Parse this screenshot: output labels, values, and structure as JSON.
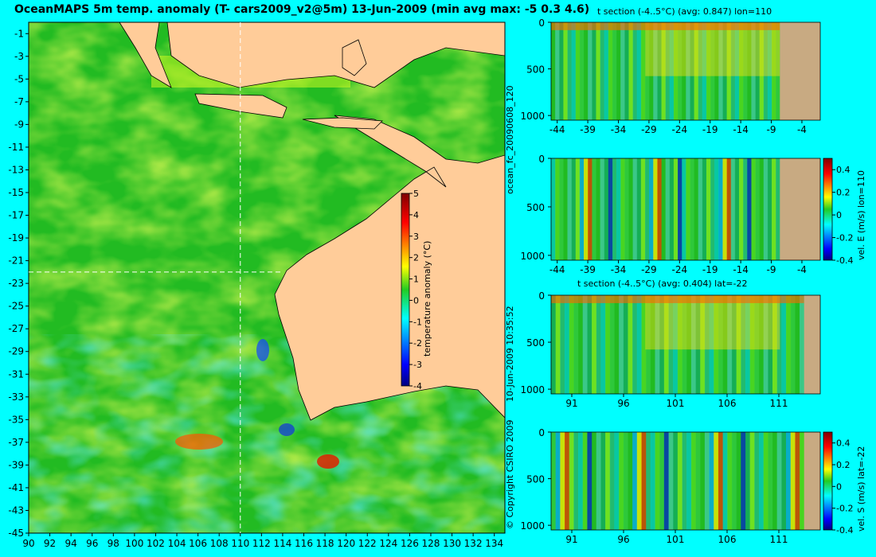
{
  "title": "OceanMAPS 5m temp. anomaly (T- cars2009_v2@5m) 13-Jun-2009 (min avg max: -5 0.3 4.6)",
  "side_labels": {
    "run_id": "ocean_fc_20090608_120",
    "timestamp": "10-Jun-2009 10:35:52",
    "copyright": "© Copyright CSIRO 2009"
  },
  "colors": {
    "background": "#00ffff",
    "land": "#ffcc99",
    "section_land": "#c8aa82",
    "ocean_base": "#22bb22",
    "crosshair": "#ffffff"
  },
  "chart_data": [
    {
      "type": "heatmap",
      "id": "map",
      "title": "OceanMAPS 5m temp. anomaly (T- cars2009_v2@5m) 13-Jun-2009 (min avg max: -5 0.3 4.6)",
      "xlim": [
        90,
        135
      ],
      "ylim": [
        -45,
        0
      ],
      "x_ticks": [
        "90",
        "92",
        "94",
        "96",
        "98",
        "100",
        "102",
        "104",
        "106",
        "108",
        "110",
        "112",
        "114",
        "116",
        "118",
        "120",
        "122",
        "124",
        "126",
        "128",
        "130",
        "132",
        "134"
      ],
      "y_ticks": [
        "-1",
        "-3",
        "-5",
        "-7",
        "-9",
        "-11",
        "-13",
        "-15",
        "-17",
        "-19",
        "-21",
        "-23",
        "-25",
        "-27",
        "-29",
        "-31",
        "-33",
        "-35",
        "-37",
        "-39",
        "-41",
        "-43",
        "-45"
      ],
      "crosshair_lon": 110,
      "crosshair_lat": -22,
      "colorbar": {
        "label": "temperature anomaly (°C)",
        "range": [
          -4,
          5
        ],
        "ticks": [
          "5",
          "4",
          "3",
          "2",
          "1",
          "0",
          "-1",
          "-2",
          "-3",
          "-4"
        ]
      }
    },
    {
      "type": "heatmap",
      "id": "t-section-lon",
      "title": "t section (-4..5°C) (avg: 0.847) lon=110",
      "xlim": [
        -45,
        -1
      ],
      "ylim": [
        1050,
        0
      ],
      "x_ticks": [
        "-44",
        "-39",
        "-34",
        "-29",
        "-24",
        "-19",
        "-14",
        "-9",
        "-4"
      ],
      "y_ticks": [
        "0",
        "500",
        "1000"
      ]
    },
    {
      "type": "heatmap",
      "id": "vel-e-section",
      "title": "",
      "xlim": [
        -45,
        -1
      ],
      "ylim": [
        1050,
        0
      ],
      "x_ticks": [
        "-44",
        "-39",
        "-34",
        "-29",
        "-24",
        "-19",
        "-14",
        "-9",
        "-4"
      ],
      "y_ticks": [
        "0",
        "500",
        "1000"
      ],
      "colorbar": {
        "label": "vel. E (m/s) lon=110",
        "range": [
          -0.4,
          0.5
        ],
        "ticks": [
          "0.4",
          "0.2",
          "0",
          "-0.2",
          "-0.4"
        ]
      }
    },
    {
      "type": "heatmap",
      "id": "t-section-lat",
      "title": "t section (-4..5°C) (avg: 0.404) lat=-22",
      "xlim": [
        89,
        115
      ],
      "ylim": [
        1050,
        0
      ],
      "x_ticks": [
        "91",
        "96",
        "101",
        "106",
        "111"
      ],
      "y_ticks": [
        "0",
        "500",
        "1000"
      ]
    },
    {
      "type": "heatmap",
      "id": "vel-s-section",
      "title": "",
      "xlim": [
        89,
        115
      ],
      "ylim": [
        1050,
        0
      ],
      "x_ticks": [
        "91",
        "96",
        "101",
        "106",
        "111"
      ],
      "y_ticks": [
        "0",
        "500",
        "1000"
      ],
      "colorbar": {
        "label": "vel. S (m/s) lat=-22",
        "range": [
          -0.4,
          0.5
        ],
        "ticks": [
          "0.4",
          "0.2",
          "0",
          "-0.2",
          "-0.4"
        ]
      }
    }
  ]
}
